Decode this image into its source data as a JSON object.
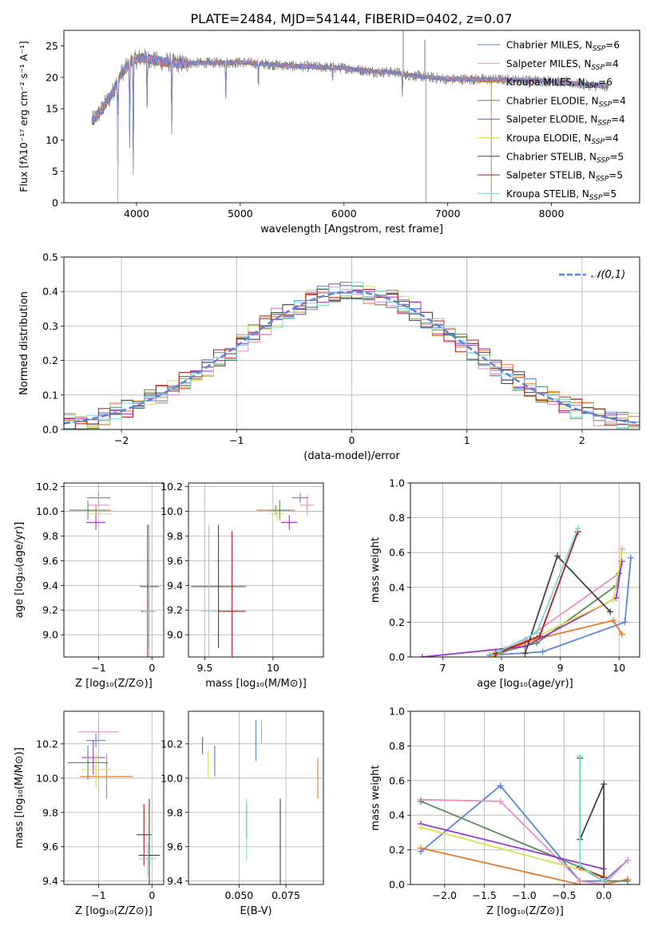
{
  "figure_title": "PLATE=2484, MJD=54144, FIBERID=0402, z=0.07",
  "models": [
    {
      "name": "Chabrier MILES",
      "ssp": "6",
      "color": "#5b84d6"
    },
    {
      "name": "Salpeter MILES",
      "ssp": "4",
      "color": "#e88fc7"
    },
    {
      "name": "Kroupa MILES",
      "ssp": "6",
      "color": "#e07b2a"
    },
    {
      "name": "Chabrier ELODIE",
      "ssp": "4",
      "color": "#5a8a5e"
    },
    {
      "name": "Salpeter ELODIE",
      "ssp": "4",
      "color": "#9b36c4"
    },
    {
      "name": "Kroupa ELODIE",
      "ssp": "4",
      "color": "#d8e05a"
    },
    {
      "name": "Chabrier STELIB",
      "ssp": "5",
      "color": "#444444"
    },
    {
      "name": "Salpeter STELIB",
      "ssp": "5",
      "color": "#b01a1a"
    },
    {
      "name": "Kroupa STELIB",
      "ssp": "5",
      "color": "#7fd8d8"
    }
  ],
  "chart_data": [
    {
      "id": "spectrum",
      "type": "line",
      "xlabel": "wavelength [Angstrom, rest frame]",
      "ylabel": "Flux [fλ10⁻¹⁷ erg cm⁻² s⁻¹ A⁻¹]",
      "xlim": [
        3300,
        8850
      ],
      "ylim": [
        0,
        27.5
      ],
      "xticks": [
        4000,
        5000,
        6000,
        7000,
        8000
      ],
      "yticks": [
        0,
        5,
        10,
        15,
        20,
        25
      ],
      "legend_position": "top-right",
      "continuum": {
        "x": [
          3570,
          3650,
          3750,
          3850,
          3950,
          4050,
          4200,
          4400,
          4600,
          5000,
          5500,
          6000,
          6300,
          6500,
          6600,
          7000,
          7300,
          7600,
          8000,
          8300,
          8550
        ],
        "y": [
          13.0,
          14.5,
          17.0,
          20.5,
          22.5,
          23.2,
          22.6,
          22.2,
          22.3,
          22.4,
          21.8,
          21.5,
          20.9,
          20.8,
          20.4,
          19.7,
          19.7,
          19.6,
          19.4,
          18.9,
          18.5
        ]
      },
      "absorption_lines": [
        [
          3820,
          0.0
        ],
        [
          3934,
          10.0
        ],
        [
          3969,
          6.0
        ],
        [
          4102,
          15.5
        ],
        [
          4340,
          12.0
        ],
        [
          4861,
          16.5
        ],
        [
          5175,
          18.0
        ],
        [
          5890,
          19.5
        ],
        [
          6563,
          17.5
        ]
      ],
      "emission_lines": [
        [
          6570,
          27.5
        ],
        [
          6780,
          26.0
        ]
      ],
      "dropout_lines": [
        [
          6790,
          0
        ],
        [
          7420,
          0
        ]
      ]
    },
    {
      "id": "residuals",
      "type": "step",
      "xlabel": "(data-model)/error",
      "ylabel": "Normed distribution",
      "xlim": [
        -2.5,
        2.5
      ],
      "ylim": [
        0,
        0.5
      ],
      "xticks": [
        -2,
        -1,
        0,
        1,
        2
      ],
      "yticks": [
        0.0,
        0.1,
        0.2,
        0.3,
        0.4,
        0.5
      ],
      "reference_curve": {
        "name": "𝒩(0,1)",
        "mean": 0,
        "sigma": 1
      },
      "legend_position": "top-right"
    },
    {
      "id": "age_vs_Z",
      "type": "errorbar",
      "xlabel": "Z [log₁₀(Z/Z⊙)]",
      "ylabel": "age  [log₁₀(age/yr)]",
      "xlim": [
        -1.65,
        0.22
      ],
      "ylim": [
        8.82,
        10.23
      ],
      "xticks": [
        -1,
        0
      ],
      "yticks": [
        9.0,
        9.2,
        9.4,
        9.6,
        9.8,
        10.0,
        10.2
      ],
      "points": [
        {
          "x": -1.0,
          "xerr": 0.22,
          "y": 10.11,
          "yerr": 0.04
        },
        {
          "x": -1.0,
          "xerr": 0.2,
          "y": 10.05,
          "yerr": 0.08
        },
        {
          "x": -1.05,
          "xerr": 0.28,
          "y": 10.01,
          "yerr": 0.04
        },
        {
          "x": -1.2,
          "xerr": 0.35,
          "y": 10.01,
          "yerr": 0.08
        },
        {
          "x": -1.05,
          "xerr": 0.18,
          "y": 9.91,
          "yerr": 0.06
        },
        {
          "x": -1.0,
          "xerr": 0.25,
          "y": 9.98,
          "yerr": 0.06
        },
        {
          "x": -0.05,
          "xerr": 0.18,
          "y": 9.39,
          "yerr": 0.5
        },
        {
          "x": -0.08,
          "xerr": 0.12,
          "y": 9.19,
          "yerr": 0.7
        },
        {
          "x": -0.05,
          "xerr": 0.12,
          "y": 9.19,
          "yerr": 0.7
        }
      ]
    },
    {
      "id": "age_vs_mass",
      "type": "errorbar",
      "xlabel": "mass [log₁₀(M/M⊙)]",
      "ylabel": "",
      "xlim": [
        9.38,
        10.37
      ],
      "ylim": [
        8.82,
        10.23
      ],
      "xticks": [
        9.5,
        10.0
      ],
      "yticks": [
        9.0,
        9.2,
        9.4,
        9.6,
        9.8,
        10.0,
        10.2
      ],
      "points": [
        {
          "x": 10.2,
          "xerr": 0.06,
          "y": 10.11,
          "yerr": 0.04
        },
        {
          "x": 10.25,
          "xerr": 0.05,
          "y": 10.05,
          "yerr": 0.08
        },
        {
          "x": 10.02,
          "xerr": 0.14,
          "y": 10.01,
          "yerr": 0.04
        },
        {
          "x": 10.05,
          "xerr": 0.08,
          "y": 10.01,
          "yerr": 0.08
        },
        {
          "x": 10.12,
          "xerr": 0.06,
          "y": 9.91,
          "yerr": 0.06
        },
        {
          "x": 10.03,
          "xerr": 0.05,
          "y": 9.98,
          "yerr": 0.06
        },
        {
          "x": 9.6,
          "xerr": 0.2,
          "y": 9.39,
          "yerr": 0.5
        },
        {
          "x": 9.7,
          "xerr": 0.1,
          "y": 9.19,
          "yerr": 0.65
        },
        {
          "x": 9.53,
          "xerr": 0.06,
          "y": 9.19,
          "yerr": 0.7
        }
      ]
    },
    {
      "id": "mass_weight_vs_age",
      "type": "line",
      "xlabel": "age  [log₁₀(age/yr)]",
      "ylabel": "mass weight",
      "xlim": [
        6.45,
        10.35
      ],
      "ylim": [
        0,
        1.0
      ],
      "xticks": [
        7,
        8,
        9,
        10
      ],
      "yticks": [
        0.0,
        0.2,
        0.4,
        0.6,
        0.8,
        1.0
      ],
      "series": [
        {
          "x": [
            7.8,
            8.7,
            10.1,
            10.2
          ],
          "y": [
            0.01,
            0.03,
            0.2,
            0.57
          ]
        },
        {
          "x": [
            7.9,
            8.4,
            10.0,
            10.05
          ],
          "y": [
            0.03,
            0.1,
            0.48,
            0.62
          ]
        },
        {
          "x": [
            7.85,
            8.55,
            9.9,
            10.05
          ],
          "y": [
            0.0,
            0.1,
            0.21,
            0.13
          ]
        },
        {
          "x": [
            7.9,
            8.6,
            9.95,
            10.0
          ],
          "y": [
            0.02,
            0.08,
            0.41,
            0.48
          ]
        },
        {
          "x": [
            6.65,
            8.4,
            9.95,
            10.05
          ],
          "y": [
            0.0,
            0.06,
            0.34,
            0.55
          ]
        },
        {
          "x": [
            7.85,
            8.5,
            9.9,
            10.05
          ],
          "y": [
            0.02,
            0.1,
            0.33,
            0.6
          ]
        },
        {
          "x": [
            8.4,
            8.95,
            9.85
          ],
          "y": [
            0.02,
            0.58,
            0.26
          ]
        },
        {
          "x": [
            7.9,
            8.65,
            9.3
          ],
          "y": [
            0.02,
            0.12,
            0.72
          ]
        },
        {
          "x": [
            7.95,
            8.6,
            9.3
          ],
          "y": [
            0.03,
            0.14,
            0.74
          ]
        }
      ]
    },
    {
      "id": "mass_vs_Z",
      "type": "errorbar",
      "xlabel": "Z [log₁₀(Z/Z⊙)]",
      "ylabel": "mass [log₁₀(M/M⊙)]",
      "xlim": [
        -1.65,
        0.22
      ],
      "ylim": [
        9.38,
        10.39
      ],
      "xticks": [
        -1,
        0
      ],
      "yticks": [
        9.4,
        9.6,
        9.8,
        10.0,
        10.2
      ],
      "points": [
        {
          "x": -1.05,
          "xerr": 0.18,
          "y": 10.22,
          "yerr": 0.04
        },
        {
          "x": -1.0,
          "xerr": 0.38,
          "y": 10.27,
          "yerr": 0.07
        },
        {
          "x": -0.85,
          "xerr": 0.5,
          "y": 10.01,
          "yerr": 0.13
        },
        {
          "x": -1.2,
          "xerr": 0.38,
          "y": 10.09,
          "yerr": 0.1
        },
        {
          "x": -1.1,
          "xerr": 0.22,
          "y": 10.12,
          "yerr": 0.1
        },
        {
          "x": -1.05,
          "xerr": 0.28,
          "y": 10.05,
          "yerr": 0.1
        },
        {
          "x": -0.05,
          "xerr": 0.2,
          "y": 9.55,
          "yerr": 0.33
        },
        {
          "x": -0.15,
          "xerr": 0.14,
          "y": 9.67,
          "yerr": 0.18
        },
        {
          "x": -0.08,
          "xerr": 0.16,
          "y": 9.53,
          "yerr": 0.1
        }
      ]
    },
    {
      "id": "ebv",
      "type": "errorbar",
      "xlabel": "E(B-V)",
      "ylabel": "",
      "xlim": [
        0.023,
        0.095
      ],
      "ylim": [
        9.38,
        10.39
      ],
      "xticks": [
        0.05,
        0.075
      ],
      "yticks": [
        9.4,
        9.6,
        9.8,
        10.0,
        10.2
      ],
      "points": [
        {
          "x": 0.059,
          "y": 10.22,
          "yerr": 0.12
        },
        {
          "x": 0.062,
          "y": 10.27,
          "yerr": 0.07
        },
        {
          "x": 0.092,
          "y": 10.0,
          "yerr": 0.12
        },
        {
          "x": 0.037,
          "y": 10.1,
          "yerr": 0.09
        },
        {
          "x": 0.0305,
          "y": 10.19,
          "yerr": 0.05
        },
        {
          "x": 0.0335,
          "y": 10.08,
          "yerr": 0.08
        },
        {
          "x": 0.072,
          "y": 9.6,
          "yerr": 0.28
        },
        {
          "x": 0.054,
          "y": 9.75,
          "yerr": 0.1
        },
        {
          "x": 0.054,
          "y": 9.7,
          "yerr": 0.18
        }
      ]
    },
    {
      "id": "mass_weight_vs_Z",
      "type": "line",
      "xlabel": "Z [log₁₀(Z/Z⊙)]",
      "ylabel": "mass weight",
      "xlim": [
        -2.43,
        0.45
      ],
      "ylim": [
        0,
        1.0
      ],
      "xticks": [
        -2.0,
        -1.5,
        -1.0,
        -0.5,
        0.0
      ],
      "yticks": [
        0.0,
        0.2,
        0.4,
        0.6,
        0.8,
        1.0
      ],
      "series": [
        {
          "x": [
            -2.3,
            -1.3,
            -0.3,
            0.0,
            0.3
          ],
          "y": [
            0.19,
            0.57,
            0.02,
            0.02,
            0.14
          ]
        },
        {
          "x": [
            -2.3,
            -1.3,
            -0.3,
            0.0,
            0.3
          ],
          "y": [
            0.49,
            0.48,
            0.02,
            0.0,
            0.14
          ]
        },
        {
          "x": [
            -2.3,
            -0.3,
            0.0,
            0.3
          ],
          "y": [
            0.21,
            0.0,
            0.0,
            0.03
          ]
        },
        {
          "x": [
            -2.3,
            -0.3,
            0.0,
            0.3
          ],
          "y": [
            0.48,
            0.1,
            0.02,
            0.02
          ]
        },
        {
          "x": [
            -2.3,
            0.0
          ],
          "y": [
            0.35,
            0.09
          ]
        },
        {
          "x": [
            -2.3,
            0.0
          ],
          "y": [
            0.33,
            0.05
          ]
        },
        {
          "x": [
            -0.3,
            -0.3,
            0.0,
            0.0
          ],
          "y": [
            0.73,
            0.26,
            0.58,
            0.02
          ]
        },
        {
          "x": [
            -0.3,
            0.0
          ],
          "y": [
            0.1,
            0.04
          ]
        },
        {
          "x": [
            -0.3,
            -0.3,
            0.0
          ],
          "y": [
            0.74,
            0.11,
            0.02
          ]
        }
      ]
    }
  ]
}
